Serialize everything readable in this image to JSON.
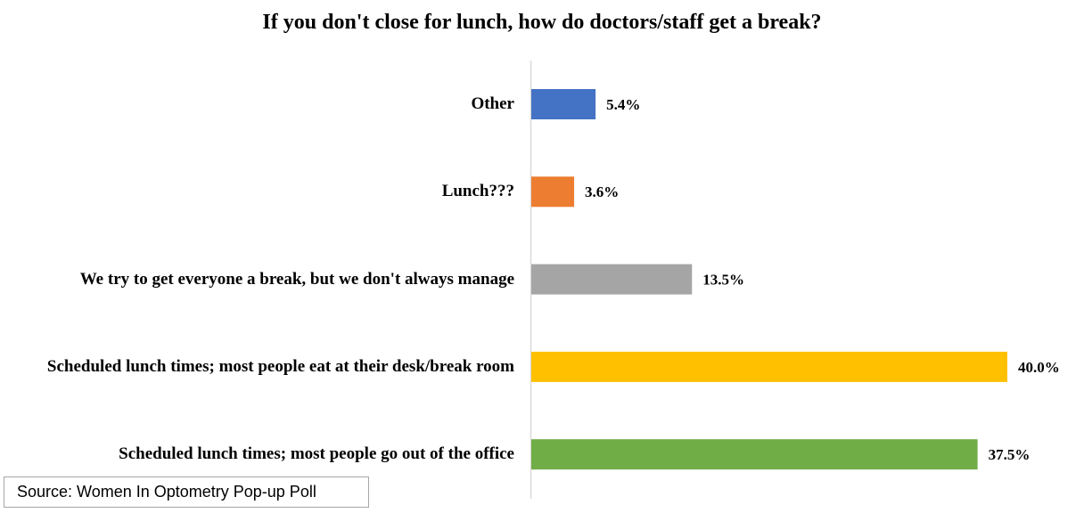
{
  "chart_data": {
    "type": "bar",
    "orientation": "horizontal",
    "title": "If you don't close for lunch, how do doctors/staff get a break?",
    "categories": [
      "Other",
      "Lunch???",
      "We try to get everyone a break, but we don't always manage",
      "Scheduled lunch times; most people eat at their desk/break room",
      "Scheduled lunch times; most people go out of the office"
    ],
    "values": [
      5.4,
      3.6,
      13.5,
      40.0,
      37.5
    ],
    "value_labels": [
      "5.4%",
      "3.6%",
      "13.5%",
      "40.0%",
      "37.5%"
    ],
    "colors": [
      "#4472c4",
      "#ed7d31",
      "#a5a5a5",
      "#ffc000",
      "#70ad47"
    ],
    "source": "Source: Women In Optometry Pop-up Poll"
  }
}
